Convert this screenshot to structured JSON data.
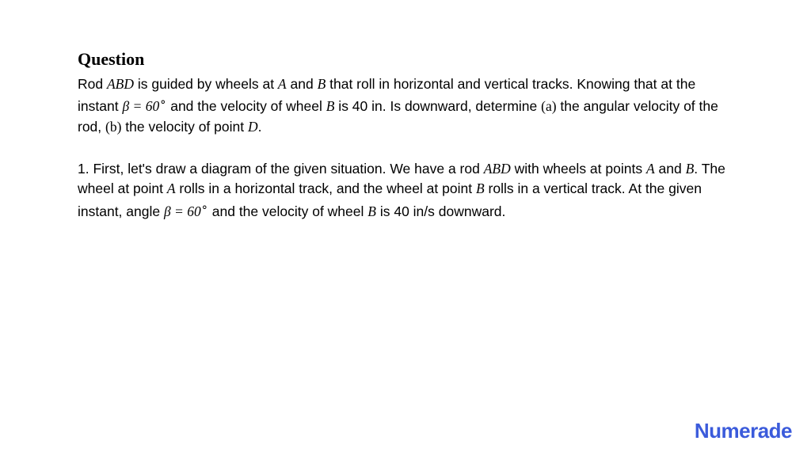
{
  "heading": "Question",
  "question": {
    "p1a": "Rod ",
    "m1": "ABD",
    "p1b": " is guided by wheels at ",
    "m2": "A",
    "p1c": " and ",
    "m3": "B",
    "p1d": " that roll in horizontal and vertical tracks. Knowing that at the instant ",
    "m4": "β = 60",
    "m4sup": "∘",
    "p1e": " and the velocity of wheel ",
    "m5": "B",
    "p1f": " is 40 in. Is downward, determine ",
    "m6": "(a)",
    "p1g": " the angular velocity of the rod, ",
    "m7": "(b)",
    "p1h": " the velocity of point ",
    "m8": "D",
    "p1i": "."
  },
  "step": {
    "s1": "1. First, let's draw a diagram of the given situation. We have a rod ",
    "m1": "ABD",
    "s2": " with wheels at points ",
    "m2": "A",
    "s3": " and ",
    "m3": "B",
    "s4": ". The wheel at point ",
    "m4": "A",
    "s5": " rolls in a horizontal track, and the wheel at point ",
    "m5": "B",
    "s6": " rolls in a vertical track. At the given instant, angle ",
    "m6": "β = 60",
    "m6sup": "∘",
    "s7": " and the velocity of wheel ",
    "m7": "B",
    "s8": " is 40 in/s downward."
  },
  "logo": "Numerade",
  "colors": {
    "text": "#000000",
    "logo": "#3b5bdb",
    "background": "#ffffff"
  },
  "typography": {
    "heading_fontsize": 22,
    "body_fontsize": 17.5,
    "logo_fontsize": 22
  }
}
